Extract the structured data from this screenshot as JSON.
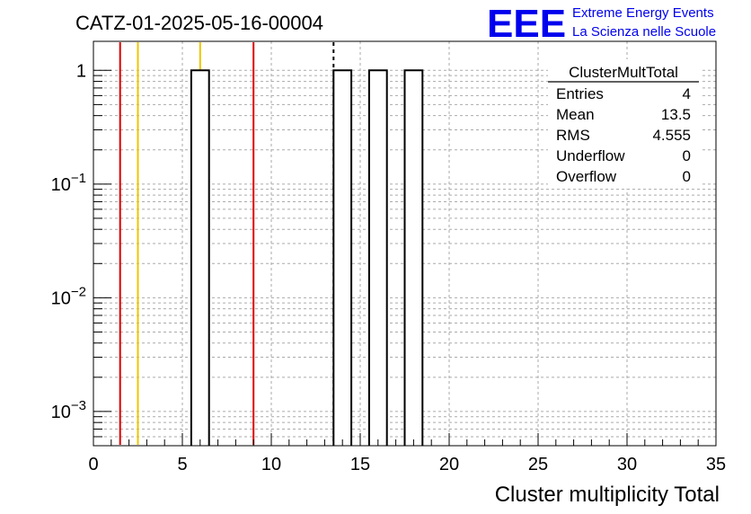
{
  "chart_data": {
    "type": "bar",
    "title": "CATZ-01-2025-05-16-00004",
    "xlabel": "Cluster multiplicity Total",
    "ylabel": "",
    "x_range": [
      0,
      35
    ],
    "y_range": [
      0.0005,
      1.8
    ],
    "y_scale": "log",
    "grid": true,
    "x_ticks": [
      "0",
      "5",
      "10",
      "15",
      "20",
      "25",
      "30",
      "35"
    ],
    "y_ticks": [
      {
        "value": 1,
        "base": "1",
        "exp": ""
      },
      {
        "value": 0.1,
        "base": "10",
        "exp": "−1"
      },
      {
        "value": 0.01,
        "base": "10",
        "exp": "−2"
      },
      {
        "value": 0.001,
        "base": "10",
        "exp": "−3"
      }
    ],
    "bins": [
      {
        "low": 5.5,
        "high": 6.5,
        "value": 1
      },
      {
        "low": 13.5,
        "high": 14.5,
        "value": 1
      },
      {
        "low": 15.5,
        "high": 16.5,
        "value": 1
      },
      {
        "low": 17.5,
        "high": 18.5,
        "value": 1
      }
    ],
    "reference_lines": [
      {
        "x": 1.5,
        "color": "#dd0000",
        "style": "solid"
      },
      {
        "x": 2.5,
        "color": "#f0c400",
        "style": "solid"
      },
      {
        "x": 6,
        "color": "#f0c400",
        "style": "solid"
      },
      {
        "x": 9,
        "color": "#dd0000",
        "style": "solid"
      },
      {
        "x": 13.5,
        "color": "#000000",
        "style": "dashed"
      }
    ],
    "stats_box": {
      "name": "ClusterMultTotal",
      "rows": [
        {
          "label": "Entries",
          "value": "4"
        },
        {
          "label": "Mean",
          "value": "13.5"
        },
        {
          "label": "RMS",
          "value": "4.555"
        },
        {
          "label": "Underflow",
          "value": "0"
        },
        {
          "label": "Overflow",
          "value": "0"
        }
      ]
    }
  },
  "logo": {
    "text": "EEE",
    "line1": "Extreme Energy Events",
    "line2": "La Scienza nelle Scuole",
    "color": "#0000ee"
  }
}
